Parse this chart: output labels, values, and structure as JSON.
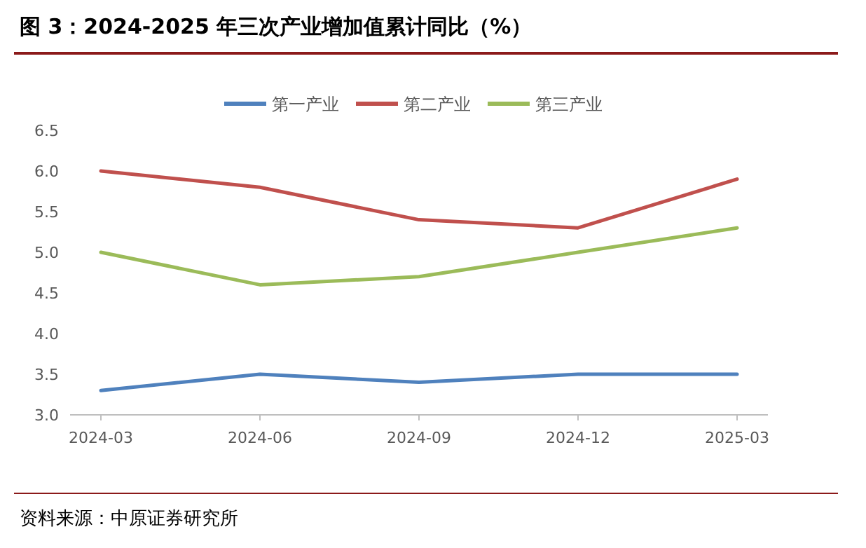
{
  "chart_data": {
    "type": "line",
    "title": "图 3：2024-2025 年三次产业增加值累计同比（%）",
    "annotations": [
      "资料来源：中原证券研究所"
    ],
    "categories": [
      "2024-03",
      "2024-06",
      "2024-09",
      "2024-12",
      "2025-03"
    ],
    "series": [
      {
        "name": "第一产业",
        "color": "#4f81bd",
        "values": [
          3.3,
          3.5,
          3.4,
          3.5,
          3.5
        ]
      },
      {
        "name": "第二产业",
        "color": "#c0504d",
        "values": [
          6.0,
          5.8,
          5.4,
          5.3,
          5.9
        ]
      },
      {
        "name": "第三产业",
        "color": "#9bbb59",
        "values": [
          5.0,
          4.6,
          4.7,
          5.0,
          5.3
        ]
      }
    ],
    "ylim": [
      3.0,
      6.5
    ],
    "yticks": [
      {
        "value": 3,
        "label": "3.0"
      },
      {
        "value": 3.5,
        "label": "3.5"
      },
      {
        "value": 4,
        "label": "4.0"
      },
      {
        "value": 4.5,
        "label": "4.5"
      },
      {
        "value": 5,
        "label": "5.0"
      },
      {
        "value": 5.5,
        "label": "5.5"
      },
      {
        "value": 6,
        "label": "6.0"
      },
      {
        "value": 6.5,
        "label": "6.5"
      }
    ],
    "legend": "top",
    "grid": false,
    "marker": "none",
    "line_style": "solid"
  }
}
